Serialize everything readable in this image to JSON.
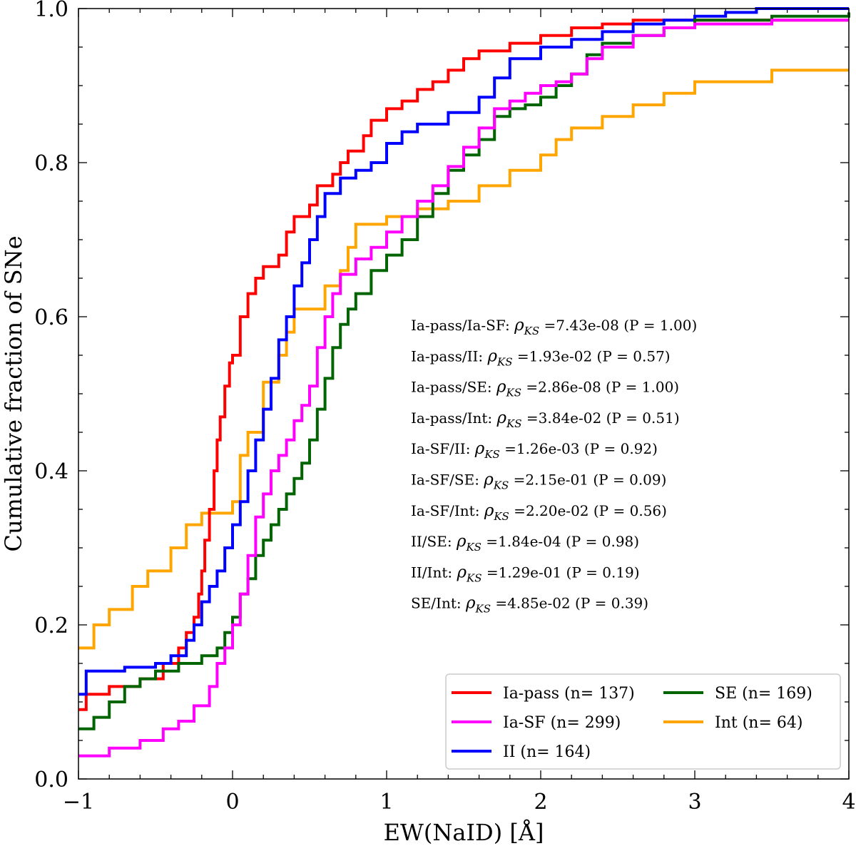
{
  "chart_data": {
    "type": "line",
    "subtype": "cumulative-step",
    "title": "",
    "xlabel": "EW(NaID) [Å]",
    "ylabel": "Cumulative fraction of SNe",
    "xlim": [
      -1,
      4
    ],
    "ylim": [
      0,
      1
    ],
    "x_ticks": [
      -1,
      0,
      1,
      2,
      3,
      4
    ],
    "x_tick_labels": [
      "−1",
      "0",
      "1",
      "2",
      "3",
      "4"
    ],
    "y_ticks": [
      0.0,
      0.2,
      0.4,
      0.6,
      0.8,
      1.0
    ],
    "y_tick_labels": [
      "0.0",
      "0.2",
      "0.4",
      "0.6",
      "0.8",
      "1.0"
    ],
    "x_minor_step": 0.2,
    "y_minor_step": 0.05,
    "grid": false,
    "legend_position": "lower-right",
    "series": [
      {
        "name": "Ia-pass (n= 137)",
        "color": "#ff0000",
        "points": [
          [
            -1.0,
            0.09
          ],
          [
            -0.95,
            0.11
          ],
          [
            -0.8,
            0.12
          ],
          [
            -0.6,
            0.13
          ],
          [
            -0.45,
            0.15
          ],
          [
            -0.35,
            0.17
          ],
          [
            -0.3,
            0.19
          ],
          [
            -0.25,
            0.21
          ],
          [
            -0.22,
            0.24
          ],
          [
            -0.2,
            0.27
          ],
          [
            -0.18,
            0.31
          ],
          [
            -0.15,
            0.35
          ],
          [
            -0.12,
            0.4
          ],
          [
            -0.1,
            0.44
          ],
          [
            -0.08,
            0.47
          ],
          [
            -0.05,
            0.51
          ],
          [
            -0.02,
            0.54
          ],
          [
            0.0,
            0.55
          ],
          [
            0.05,
            0.6
          ],
          [
            0.1,
            0.63
          ],
          [
            0.15,
            0.65
          ],
          [
            0.2,
            0.665
          ],
          [
            0.3,
            0.68
          ],
          [
            0.35,
            0.71
          ],
          [
            0.4,
            0.73
          ],
          [
            0.5,
            0.745
          ],
          [
            0.55,
            0.77
          ],
          [
            0.65,
            0.785
          ],
          [
            0.7,
            0.8
          ],
          [
            0.75,
            0.815
          ],
          [
            0.85,
            0.835
          ],
          [
            0.9,
            0.855
          ],
          [
            1.0,
            0.87
          ],
          [
            1.1,
            0.88
          ],
          [
            1.2,
            0.895
          ],
          [
            1.3,
            0.905
          ],
          [
            1.4,
            0.92
          ],
          [
            1.5,
            0.935
          ],
          [
            1.6,
            0.945
          ],
          [
            1.8,
            0.955
          ],
          [
            2.0,
            0.965
          ],
          [
            2.2,
            0.975
          ],
          [
            2.4,
            0.98
          ],
          [
            2.6,
            0.985
          ],
          [
            4.0,
            0.985
          ]
        ]
      },
      {
        "name": "Ia-SF (n= 299)",
        "color": "#ff00ff",
        "points": [
          [
            -1.0,
            0.03
          ],
          [
            -0.8,
            0.04
          ],
          [
            -0.6,
            0.05
          ],
          [
            -0.45,
            0.065
          ],
          [
            -0.35,
            0.075
          ],
          [
            -0.25,
            0.095
          ],
          [
            -0.15,
            0.12
          ],
          [
            -0.1,
            0.15
          ],
          [
            -0.05,
            0.17
          ],
          [
            0.0,
            0.2
          ],
          [
            0.05,
            0.24
          ],
          [
            0.1,
            0.29
          ],
          [
            0.15,
            0.34
          ],
          [
            0.2,
            0.37
          ],
          [
            0.25,
            0.4
          ],
          [
            0.3,
            0.42
          ],
          [
            0.35,
            0.44
          ],
          [
            0.4,
            0.465
          ],
          [
            0.45,
            0.485
          ],
          [
            0.5,
            0.51
          ],
          [
            0.55,
            0.56
          ],
          [
            0.6,
            0.6
          ],
          [
            0.65,
            0.63
          ],
          [
            0.7,
            0.655
          ],
          [
            0.8,
            0.675
          ],
          [
            0.9,
            0.69
          ],
          [
            1.0,
            0.71
          ],
          [
            1.1,
            0.73
          ],
          [
            1.2,
            0.75
          ],
          [
            1.3,
            0.77
          ],
          [
            1.4,
            0.795
          ],
          [
            1.5,
            0.82
          ],
          [
            1.6,
            0.845
          ],
          [
            1.7,
            0.87
          ],
          [
            1.8,
            0.88
          ],
          [
            1.9,
            0.89
          ],
          [
            2.0,
            0.9
          ],
          [
            2.1,
            0.905
          ],
          [
            2.2,
            0.915
          ],
          [
            2.3,
            0.935
          ],
          [
            2.4,
            0.95
          ],
          [
            2.6,
            0.965
          ],
          [
            2.8,
            0.975
          ],
          [
            3.0,
            0.98
          ],
          [
            3.5,
            0.985
          ],
          [
            4.0,
            0.985
          ]
        ]
      },
      {
        "name": "II (n= 164)",
        "color": "#0000ff",
        "points": [
          [
            -1.0,
            0.11
          ],
          [
            -0.95,
            0.14
          ],
          [
            -0.7,
            0.145
          ],
          [
            -0.5,
            0.15
          ],
          [
            -0.4,
            0.16
          ],
          [
            -0.3,
            0.18
          ],
          [
            -0.25,
            0.2
          ],
          [
            -0.2,
            0.23
          ],
          [
            -0.15,
            0.25
          ],
          [
            -0.1,
            0.27
          ],
          [
            -0.05,
            0.3
          ],
          [
            0.0,
            0.33
          ],
          [
            0.05,
            0.36
          ],
          [
            0.1,
            0.4
          ],
          [
            0.15,
            0.44
          ],
          [
            0.2,
            0.48
          ],
          [
            0.25,
            0.52
          ],
          [
            0.3,
            0.57
          ],
          [
            0.35,
            0.6
          ],
          [
            0.4,
            0.64
          ],
          [
            0.45,
            0.67
          ],
          [
            0.5,
            0.7
          ],
          [
            0.55,
            0.73
          ],
          [
            0.6,
            0.76
          ],
          [
            0.7,
            0.78
          ],
          [
            0.8,
            0.79
          ],
          [
            0.9,
            0.8
          ],
          [
            1.0,
            0.825
          ],
          [
            1.1,
            0.84
          ],
          [
            1.2,
            0.85
          ],
          [
            1.4,
            0.865
          ],
          [
            1.6,
            0.885
          ],
          [
            1.7,
            0.91
          ],
          [
            1.8,
            0.935
          ],
          [
            2.0,
            0.95
          ],
          [
            2.2,
            0.96
          ],
          [
            2.4,
            0.97
          ],
          [
            2.6,
            0.98
          ],
          [
            2.8,
            0.985
          ],
          [
            3.0,
            0.99
          ],
          [
            3.2,
            0.995
          ],
          [
            3.4,
            1.0
          ],
          [
            4.0,
            1.0
          ]
        ]
      },
      {
        "name": "SE (n= 169)",
        "color": "#006400",
        "points": [
          [
            -1.0,
            0.065
          ],
          [
            -0.9,
            0.08
          ],
          [
            -0.8,
            0.1
          ],
          [
            -0.7,
            0.12
          ],
          [
            -0.6,
            0.13
          ],
          [
            -0.5,
            0.14
          ],
          [
            -0.35,
            0.15
          ],
          [
            -0.2,
            0.16
          ],
          [
            -0.1,
            0.17
          ],
          [
            -0.05,
            0.19
          ],
          [
            0.0,
            0.21
          ],
          [
            0.05,
            0.24
          ],
          [
            0.1,
            0.26
          ],
          [
            0.15,
            0.29
          ],
          [
            0.2,
            0.31
          ],
          [
            0.25,
            0.33
          ],
          [
            0.3,
            0.35
          ],
          [
            0.35,
            0.37
          ],
          [
            0.4,
            0.39
          ],
          [
            0.45,
            0.41
          ],
          [
            0.5,
            0.44
          ],
          [
            0.55,
            0.48
          ],
          [
            0.6,
            0.52
          ],
          [
            0.65,
            0.56
          ],
          [
            0.7,
            0.59
          ],
          [
            0.75,
            0.61
          ],
          [
            0.8,
            0.63
          ],
          [
            0.9,
            0.66
          ],
          [
            1.0,
            0.68
          ],
          [
            1.1,
            0.7
          ],
          [
            1.2,
            0.73
          ],
          [
            1.3,
            0.76
          ],
          [
            1.4,
            0.79
          ],
          [
            1.5,
            0.81
          ],
          [
            1.6,
            0.83
          ],
          [
            1.7,
            0.86
          ],
          [
            1.8,
            0.87
          ],
          [
            1.9,
            0.875
          ],
          [
            2.0,
            0.885
          ],
          [
            2.1,
            0.9
          ],
          [
            2.2,
            0.915
          ],
          [
            2.3,
            0.94
          ],
          [
            2.4,
            0.955
          ],
          [
            2.6,
            0.965
          ],
          [
            2.8,
            0.975
          ],
          [
            3.0,
            0.985
          ],
          [
            3.5,
            0.99
          ],
          [
            4.0,
            0.995
          ]
        ]
      },
      {
        "name": "Int (n= 64)",
        "color": "#ffa500",
        "points": [
          [
            -1.0,
            0.17
          ],
          [
            -0.9,
            0.2
          ],
          [
            -0.8,
            0.22
          ],
          [
            -0.65,
            0.25
          ],
          [
            -0.55,
            0.27
          ],
          [
            -0.4,
            0.3
          ],
          [
            -0.3,
            0.33
          ],
          [
            -0.2,
            0.345
          ],
          [
            0.0,
            0.36
          ],
          [
            0.05,
            0.42
          ],
          [
            0.1,
            0.45
          ],
          [
            0.2,
            0.515
          ],
          [
            0.3,
            0.55
          ],
          [
            0.35,
            0.58
          ],
          [
            0.4,
            0.61
          ],
          [
            0.6,
            0.64
          ],
          [
            0.7,
            0.66
          ],
          [
            0.75,
            0.69
          ],
          [
            0.8,
            0.72
          ],
          [
            1.0,
            0.73
          ],
          [
            1.2,
            0.74
          ],
          [
            1.4,
            0.75
          ],
          [
            1.6,
            0.77
          ],
          [
            1.8,
            0.79
          ],
          [
            2.0,
            0.81
          ],
          [
            2.1,
            0.83
          ],
          [
            2.2,
            0.845
          ],
          [
            2.4,
            0.86
          ],
          [
            2.6,
            0.875
          ],
          [
            2.8,
            0.89
          ],
          [
            3.0,
            0.905
          ],
          [
            3.5,
            0.92
          ],
          [
            4.0,
            0.92
          ]
        ]
      }
    ],
    "legend": [
      {
        "label": "Ia-pass (n= 137)",
        "color": "#ff0000"
      },
      {
        "label": "Ia-SF (n= 299)",
        "color": "#ff00ff"
      },
      {
        "label": "II (n= 164)",
        "color": "#0000ff"
      },
      {
        "label": "SE (n= 169)",
        "color": "#006400"
      },
      {
        "label": "Int (n= 64)",
        "color": "#ffa500"
      }
    ],
    "annotations": [
      {
        "pair": "Ia-pass/Ia-SF:",
        "sym": "ρ",
        "sub": "KS",
        "value": "=7.43e-08",
        "p": "(P = 1.00)"
      },
      {
        "pair": "Ia-pass/II:",
        "sym": "ρ",
        "sub": "KS",
        "value": "=1.93e-02",
        "p": "(P = 0.57)"
      },
      {
        "pair": "Ia-pass/SE:",
        "sym": "ρ",
        "sub": "KS",
        "value": "=2.86e-08",
        "p": "(P = 1.00)"
      },
      {
        "pair": "Ia-pass/Int:",
        "sym": "ρ",
        "sub": "KS",
        "value": "=3.84e-02",
        "p": "(P = 0.51)"
      },
      {
        "pair": "Ia-SF/II:",
        "sym": "ρ",
        "sub": "KS",
        "value": "=1.26e-03",
        "p": "(P = 0.92)"
      },
      {
        "pair": "Ia-SF/SE:",
        "sym": "ρ",
        "sub": "KS",
        "value": "=2.15e-01",
        "p": "(P = 0.09)"
      },
      {
        "pair": "Ia-SF/Int:",
        "sym": "ρ",
        "sub": "KS",
        "value": "=2.20e-02",
        "p": "(P = 0.56)"
      },
      {
        "pair": "II/SE:",
        "sym": "ρ",
        "sub": "KS",
        "value": "=1.84e-04",
        "p": "(P = 0.98)"
      },
      {
        "pair": "II/Int:",
        "sym": "ρ",
        "sub": "KS",
        "value": "=1.29e-01",
        "p": "(P = 0.19)"
      },
      {
        "pair": "SE/Int:",
        "sym": "ρ",
        "sub": "KS",
        "value": "=4.85e-02",
        "p": "(P = 0.39)"
      }
    ]
  }
}
